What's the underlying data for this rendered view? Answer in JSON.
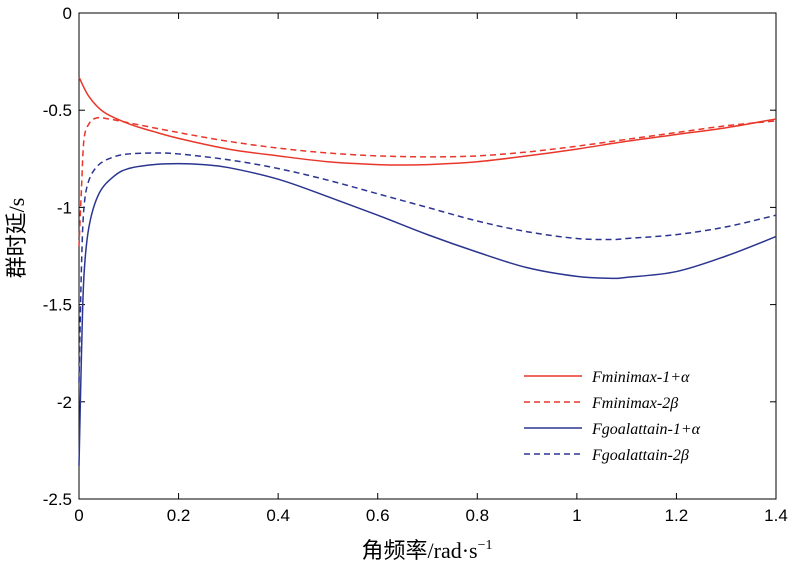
{
  "chart_data": {
    "type": "line",
    "title": "",
    "xlabel": "角频率/rad·s",
    "xlabel_superscript": "−1",
    "ylabel": "群时延/s",
    "xlim": [
      0,
      1.4
    ],
    "ylim": [
      -2.5,
      0
    ],
    "xticks": [
      0,
      0.2,
      0.4,
      0.6,
      0.8,
      1,
      1.2,
      1.4
    ],
    "xtick_labels": [
      "0",
      "0.2",
      "0.4",
      "0.6",
      "0.8",
      "1",
      "1.2",
      "1.4"
    ],
    "yticks": [
      0,
      -0.5,
      -1,
      -1.5,
      -2,
      -2.5
    ],
    "ytick_labels": [
      "0",
      "-0.5",
      "-1",
      "-1.5",
      "-2",
      "-2.5"
    ],
    "grid": false,
    "legend_position": "bottom-right",
    "series": [
      {
        "name": "Fminimax-1+α",
        "color": "#e8372a",
        "dash": "solid",
        "x": [
          0,
          0.02,
          0.05,
          0.1,
          0.15,
          0.2,
          0.3,
          0.4,
          0.5,
          0.6,
          0.65,
          0.7,
          0.8,
          0.9,
          1.0,
          1.1,
          1.2,
          1.3,
          1.4
        ],
        "y": [
          -0.33,
          -0.43,
          -0.51,
          -0.57,
          -0.61,
          -0.645,
          -0.7,
          -0.735,
          -0.765,
          -0.78,
          -0.782,
          -0.78,
          -0.765,
          -0.735,
          -0.7,
          -0.66,
          -0.625,
          -0.59,
          -0.545
        ]
      },
      {
        "name": "Fminimax-2β",
        "color": "#e8372a",
        "dash": "dashed",
        "x": [
          0,
          0.005,
          0.01,
          0.02,
          0.035,
          0.06,
          0.1,
          0.2,
          0.3,
          0.4,
          0.5,
          0.6,
          0.7,
          0.8,
          0.9,
          1.0,
          1.1,
          1.2,
          1.3,
          1.4
        ],
        "y": [
          -1.2,
          -0.9,
          -0.65,
          -0.57,
          -0.54,
          -0.545,
          -0.565,
          -0.615,
          -0.66,
          -0.695,
          -0.72,
          -0.735,
          -0.74,
          -0.735,
          -0.715,
          -0.685,
          -0.65,
          -0.615,
          -0.58,
          -0.555
        ]
      },
      {
        "name": "Fgoalattain-1+α",
        "color": "#2b3590",
        "dash": "solid",
        "x": [
          0,
          0.005,
          0.01,
          0.02,
          0.04,
          0.07,
          0.1,
          0.15,
          0.2,
          0.25,
          0.3,
          0.4,
          0.5,
          0.6,
          0.7,
          0.8,
          0.9,
          1.0,
          1.07,
          1.1,
          1.2,
          1.3,
          1.4
        ],
        "y": [
          -2.33,
          -1.75,
          -1.35,
          -1.1,
          -0.93,
          -0.84,
          -0.8,
          -0.78,
          -0.775,
          -0.78,
          -0.795,
          -0.855,
          -0.945,
          -1.04,
          -1.14,
          -1.23,
          -1.31,
          -1.355,
          -1.365,
          -1.36,
          -1.33,
          -1.25,
          -1.15
        ]
      },
      {
        "name": "Fgoalattain-2β",
        "color": "#2b3590",
        "dash": "dashed",
        "x": [
          0,
          0.005,
          0.01,
          0.02,
          0.04,
          0.07,
          0.1,
          0.15,
          0.2,
          0.3,
          0.4,
          0.5,
          0.6,
          0.7,
          0.8,
          0.9,
          1.0,
          1.07,
          1.1,
          1.2,
          1.3,
          1.4
        ],
        "y": [
          -1.9,
          -1.3,
          -1.0,
          -0.86,
          -0.78,
          -0.74,
          -0.725,
          -0.72,
          -0.725,
          -0.755,
          -0.8,
          -0.86,
          -0.93,
          -1.0,
          -1.07,
          -1.125,
          -1.16,
          -1.165,
          -1.16,
          -1.14,
          -1.1,
          -1.04
        ]
      }
    ]
  }
}
